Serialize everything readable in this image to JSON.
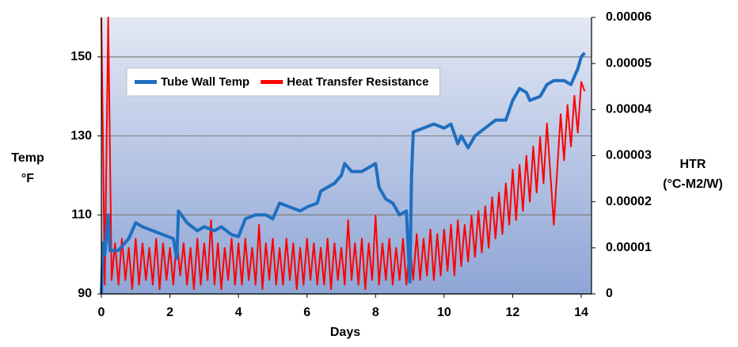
{
  "chart_data": {
    "type": "line",
    "x_label": "Days",
    "y_label": [
      "Temp",
      "°F"
    ],
    "y2_label": [
      "HTR",
      "(°C-M2/W)"
    ],
    "xlim": [
      0,
      14.3
    ],
    "xticks": [
      0,
      2,
      4,
      6,
      8,
      10,
      12,
      14
    ],
    "ylim": [
      90,
      160
    ],
    "yticks": [
      90,
      110,
      130,
      150
    ],
    "y2lim": [
      0,
      6e-05
    ],
    "y2ticks": [
      0,
      1e-05,
      2e-05,
      3e-05,
      4e-05,
      5e-05,
      6e-05
    ],
    "grid": true,
    "legend": "upper left",
    "series": [
      {
        "name": "Tube Wall Temp",
        "color": "#1f6fc0",
        "x": [
          0,
          0.05,
          0.1,
          0.2,
          0.25,
          0.5,
          0.8,
          1.0,
          1.2,
          1.5,
          1.8,
          2.1,
          2.2,
          2.25,
          2.5,
          2.8,
          3.0,
          3.3,
          3.5,
          3.8,
          4.0,
          4.2,
          4.5,
          4.8,
          5.0,
          5.2,
          5.5,
          5.8,
          6.0,
          6.3,
          6.4,
          6.6,
          6.8,
          7.0,
          7.1,
          7.3,
          7.6,
          7.8,
          8.0,
          8.1,
          8.3,
          8.5,
          8.7,
          8.9,
          9.0,
          9.05,
          9.1,
          9.4,
          9.7,
          10.0,
          10.2,
          10.4,
          10.5,
          10.7,
          10.9,
          11.2,
          11.5,
          11.8,
          12.0,
          12.2,
          12.4,
          12.5,
          12.8,
          13.0,
          13.2,
          13.5,
          13.7,
          13.9,
          14.0,
          14.1
        ],
        "values": [
          90,
          103,
          100,
          110,
          101,
          101,
          104,
          108,
          107,
          106,
          105,
          104,
          99,
          111,
          108,
          106,
          107,
          106,
          107,
          105,
          104.5,
          109,
          110,
          110,
          109,
          113,
          112,
          111,
          112,
          113,
          116,
          117,
          118,
          120,
          123,
          121,
          121,
          122,
          123,
          117,
          114,
          113,
          110,
          111,
          93,
          120,
          131,
          132,
          133,
          132,
          133,
          128,
          130,
          127,
          130,
          132,
          134,
          134,
          139,
          142,
          141,
          139,
          140,
          143,
          144,
          144,
          143,
          147,
          150,
          151
        ]
      },
      {
        "name": "Heat Transfer Resistance",
        "color": "#ff0000",
        "axis": "y2",
        "x": [
          0,
          0.1,
          0.2,
          0.3,
          0.4,
          0.5,
          0.6,
          0.7,
          0.8,
          0.9,
          1.0,
          1.1,
          1.2,
          1.3,
          1.4,
          1.5,
          1.6,
          1.7,
          1.8,
          1.9,
          2.0,
          2.1,
          2.2,
          2.3,
          2.4,
          2.5,
          2.6,
          2.7,
          2.8,
          2.9,
          3.0,
          3.1,
          3.2,
          3.3,
          3.4,
          3.5,
          3.6,
          3.7,
          3.8,
          3.9,
          4.0,
          4.1,
          4.2,
          4.3,
          4.4,
          4.5,
          4.6,
          4.7,
          4.8,
          4.9,
          5.0,
          5.1,
          5.2,
          5.3,
          5.4,
          5.5,
          5.6,
          5.7,
          5.8,
          5.9,
          6.0,
          6.1,
          6.2,
          6.3,
          6.4,
          6.5,
          6.6,
          6.7,
          6.8,
          6.9,
          7.0,
          7.1,
          7.2,
          7.3,
          7.4,
          7.5,
          7.6,
          7.7,
          7.8,
          7.9,
          8.0,
          8.1,
          8.2,
          8.3,
          8.4,
          8.5,
          8.6,
          8.7,
          8.8,
          8.9,
          9.0,
          9.1,
          9.2,
          9.3,
          9.4,
          9.5,
          9.6,
          9.7,
          9.8,
          9.9,
          10.0,
          10.1,
          10.2,
          10.3,
          10.4,
          10.5,
          10.6,
          10.7,
          10.8,
          10.9,
          11.0,
          11.1,
          11.2,
          11.3,
          11.4,
          11.5,
          11.6,
          11.7,
          11.8,
          11.9,
          12.0,
          12.1,
          12.2,
          12.3,
          12.4,
          12.5,
          12.6,
          12.7,
          12.8,
          12.9,
          13.0,
          13.1,
          13.2,
          13.3,
          13.4,
          13.5,
          13.6,
          13.7,
          13.8,
          13.9,
          14.0,
          14.1
        ],
        "values": [
          6e-05,
          2e-06,
          6e-05,
          3e-06,
          1.1e-05,
          2e-06,
          1.2e-05,
          3e-06,
          1e-05,
          1e-06,
          1.2e-05,
          2e-06,
          1.1e-05,
          3e-06,
          1e-05,
          2e-06,
          1.2e-05,
          1e-06,
          1.1e-05,
          3e-06,
          1e-05,
          2e-06,
          1.2e-05,
          4e-06,
          1.1e-05,
          2e-06,
          1e-05,
          1e-06,
          1.2e-05,
          2e-06,
          1.1e-05,
          3e-06,
          1.6e-05,
          2e-06,
          1.1e-05,
          1e-06,
          1e-05,
          3e-06,
          1.2e-05,
          2e-06,
          1.1e-05,
          2e-06,
          1.2e-05,
          3e-06,
          1e-05,
          2e-06,
          1.5e-05,
          1e-06,
          1.1e-05,
          3e-06,
          1.2e-05,
          2e-06,
          1e-05,
          2e-06,
          1.2e-05,
          3e-06,
          1.1e-05,
          1e-06,
          1e-05,
          2e-06,
          1.2e-05,
          3e-06,
          1.1e-05,
          2e-06,
          1e-05,
          2e-06,
          1.2e-05,
          1e-06,
          1.1e-05,
          3e-06,
          1e-05,
          2e-06,
          1.6e-05,
          3e-06,
          1.1e-05,
          2e-06,
          1.2e-05,
          1e-06,
          1.1e-05,
          3e-06,
          1.7e-05,
          2e-06,
          1.1e-05,
          3e-06,
          1.2e-05,
          2e-06,
          1e-05,
          3e-06,
          1.2e-05,
          2e-06,
          1.1e-05,
          3e-06,
          1.3e-05,
          3e-06,
          1.2e-05,
          4e-06,
          1.4e-05,
          3e-06,
          1.3e-05,
          4e-06,
          1.4e-05,
          5e-06,
          1.5e-05,
          4e-06,
          1.6e-05,
          6e-06,
          1.5e-05,
          7e-06,
          1.7e-05,
          8e-06,
          1.8e-05,
          9e-06,
          1.9e-05,
          1e-05,
          2.1e-05,
          1.2e-05,
          2.2e-05,
          1.3e-05,
          2.4e-05,
          1.5e-05,
          2.7e-05,
          1.6e-05,
          2.8e-05,
          1.8e-05,
          3e-05,
          2e-05,
          3.2e-05,
          2.2e-05,
          3.4e-05,
          2.4e-05,
          3.7e-05,
          2.6e-05,
          1.5e-05,
          2.7e-05,
          3.9e-05,
          2.9e-05,
          4.1e-05,
          3.2e-05,
          4.3e-05,
          3.5e-05,
          4.6e-05,
          4.4e-05
        ]
      }
    ]
  }
}
